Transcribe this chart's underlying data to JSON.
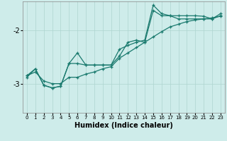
{
  "xlabel": "Humidex (Indice chaleur)",
  "background_color": "#ceecea",
  "grid_color": "#aed4d0",
  "line_color": "#1a7a6e",
  "xlim": [
    -0.5,
    23.5
  ],
  "ylim": [
    -3.55,
    -1.45
  ],
  "yticks": [
    -3,
    -2
  ],
  "xticks": [
    0,
    1,
    2,
    3,
    4,
    5,
    6,
    7,
    8,
    9,
    10,
    11,
    12,
    13,
    14,
    15,
    16,
    17,
    18,
    19,
    20,
    21,
    22,
    23
  ],
  "line1_x": [
    0,
    1,
    2,
    3,
    4,
    5,
    6,
    7,
    8,
    9,
    10,
    11,
    12,
    13,
    14,
    15,
    16,
    17,
    18,
    19,
    20,
    21,
    22,
    23
  ],
  "line1_y": [
    -2.85,
    -2.72,
    -3.03,
    -3.08,
    -3.05,
    -2.62,
    -2.42,
    -2.65,
    -2.65,
    -2.65,
    -2.65,
    -2.35,
    -2.28,
    -2.22,
    -2.18,
    -1.52,
    -1.68,
    -1.72,
    -1.72,
    -1.72,
    -1.72,
    -1.73,
    -1.78,
    -1.68
  ],
  "line2_x": [
    0,
    1,
    2,
    3,
    4,
    5,
    6,
    7,
    8,
    9,
    10,
    11,
    12,
    13,
    14,
    15,
    16,
    17,
    18,
    19,
    20,
    21,
    22,
    23
  ],
  "line2_y": [
    -2.88,
    -2.72,
    -3.03,
    -3.08,
    -3.05,
    -2.62,
    -2.62,
    -2.65,
    -2.65,
    -2.65,
    -2.65,
    -2.48,
    -2.22,
    -2.18,
    -2.22,
    -1.62,
    -1.72,
    -1.72,
    -1.78,
    -1.78,
    -1.78,
    -1.78,
    -1.78,
    -1.72
  ],
  "line3_x": [
    0,
    1,
    2,
    3,
    4,
    5,
    6,
    7,
    8,
    9,
    10,
    11,
    12,
    13,
    14,
    15,
    16,
    17,
    18,
    19,
    20,
    21,
    22,
    23
  ],
  "line3_y": [
    -2.85,
    -2.78,
    -2.95,
    -3.0,
    -3.0,
    -2.88,
    -2.88,
    -2.82,
    -2.78,
    -2.72,
    -2.68,
    -2.52,
    -2.42,
    -2.32,
    -2.22,
    -2.12,
    -2.02,
    -1.93,
    -1.88,
    -1.83,
    -1.8,
    -1.78,
    -1.76,
    -1.73
  ]
}
